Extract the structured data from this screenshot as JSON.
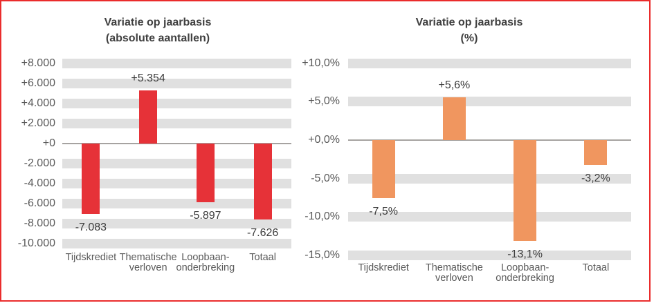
{
  "figure": {
    "background": "#ffffff",
    "border_color": "#ea2c2c",
    "axis_line_color": "#a6a3a1",
    "gridband_color": "#e0e0e0"
  },
  "chart_data": [
    {
      "type": "bar",
      "title": "Variatie op jaarbasis",
      "subtitle": "(absolute aantallen)",
      "categories": [
        "Tijdskrediet",
        "Thematische verloven",
        "Loopbaan-onderbreking",
        "Totaal"
      ],
      "category_lines": [
        [
          "Tijdskrediet"
        ],
        [
          "Thematische",
          "verloven"
        ],
        [
          "Loopbaan-",
          "onderbreking"
        ],
        [
          "Totaal"
        ]
      ],
      "values": [
        -7083,
        5354,
        -5897,
        -7626
      ],
      "data_labels": [
        "-7.083",
        "+5.354",
        "-5.897",
        "-7.626"
      ],
      "bar_color": "#e63238",
      "ylim": [
        -10000,
        8000
      ],
      "tick_step": 2000,
      "ticks": [
        8000,
        6000,
        4000,
        2000,
        0,
        -2000,
        -4000,
        -6000,
        -8000,
        -10000
      ],
      "tick_labels": [
        "+8.000",
        "+6.000",
        "+4.000",
        "+2.000",
        "+0",
        "-2.000",
        "-4.000",
        "-6.000",
        "-8.000",
        "-10.000"
      ],
      "grid": "horizontal-bands",
      "legend": "none"
    },
    {
      "type": "bar",
      "title": "Variatie op jaarbasis",
      "subtitle": "(%)",
      "categories": [
        "Tijdskrediet",
        "Thematische verloven",
        "Loopbaan-onderbreking",
        "Totaal"
      ],
      "category_lines": [
        [
          "Tijdskrediet"
        ],
        [
          "Thematische",
          "verloven"
        ],
        [
          "Loopbaan-",
          "onderbreking"
        ],
        [
          "Totaal"
        ]
      ],
      "values": [
        -7.5,
        5.6,
        -13.1,
        -3.2
      ],
      "data_labels": [
        "-7,5%",
        "+5,6%",
        "-13,1%",
        "-3,2%"
      ],
      "bar_color": "#f0965f",
      "ylim": [
        -15,
        10
      ],
      "tick_step": 5,
      "ticks": [
        10,
        5,
        0,
        -5,
        -10,
        -15
      ],
      "tick_labels": [
        "+10,0%",
        "+5,0%",
        "+0,0%",
        "-5,0%",
        "-10,0%",
        "-15,0%"
      ],
      "grid": "horizontal-bands",
      "legend": "none"
    }
  ]
}
